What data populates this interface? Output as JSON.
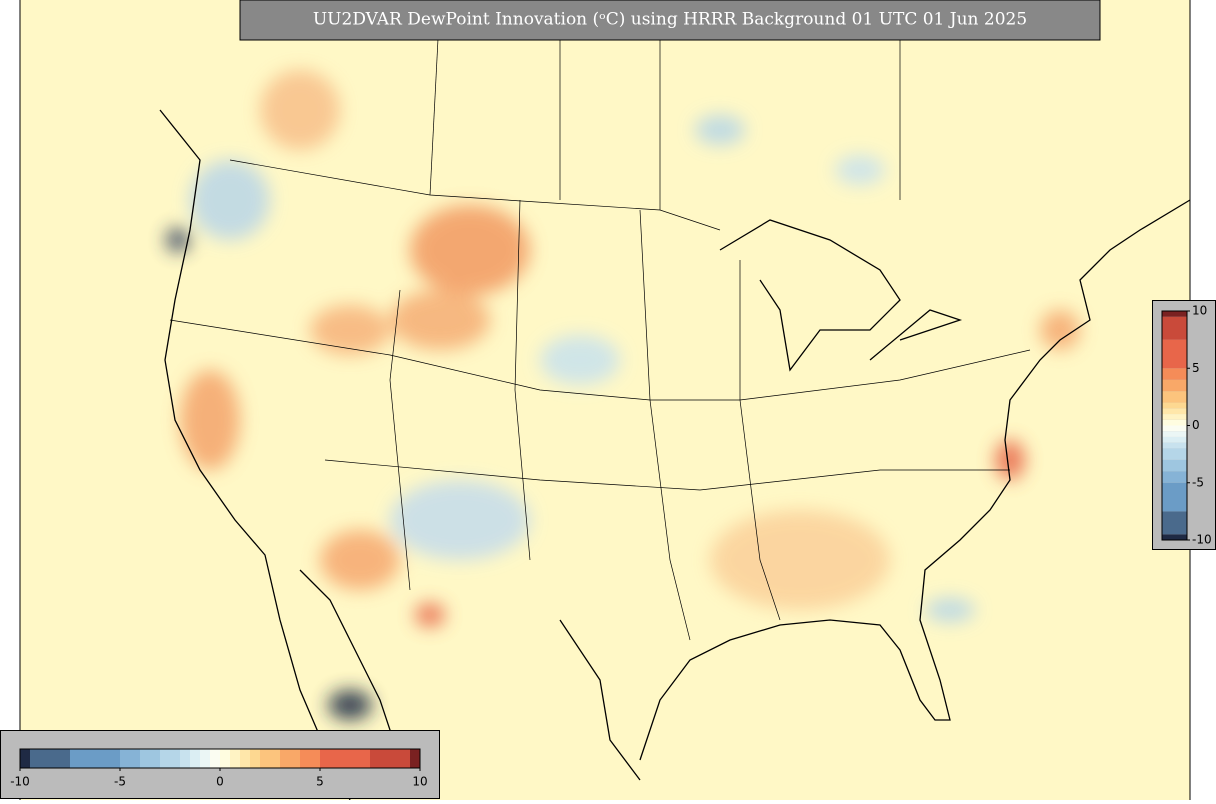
{
  "title": "UU2DVAR DewPoint Innovation (ᵒC) using HRRR Background 01 UTC 01 Jun 2025",
  "colorbar": {
    "vlim": [
      -10,
      10
    ],
    "ticks": [
      -10,
      -5,
      0,
      5,
      10
    ],
    "bounds": [
      -10,
      -9.5,
      -7.5,
      -5,
      -4,
      -3,
      -2,
      -1.5,
      -1,
      -0.5,
      0,
      0.5,
      1,
      1.5,
      2,
      3,
      4,
      5,
      7.5,
      9.5,
      10
    ],
    "colors": [
      "#1f2a44",
      "#4a6a8c",
      "#6b9cc6",
      "#86b3d6",
      "#9ec6e0",
      "#b5d6e8",
      "#c8e2ee",
      "#dbeef3",
      "#ebf6f5",
      "#fbfdf2",
      "#fffde0",
      "#fff3c4",
      "#ffe7aa",
      "#fdd891",
      "#fcc47d",
      "#f9a868",
      "#f58c58",
      "#e8664a",
      "#c94a3a",
      "#7a2121"
    ]
  }
}
